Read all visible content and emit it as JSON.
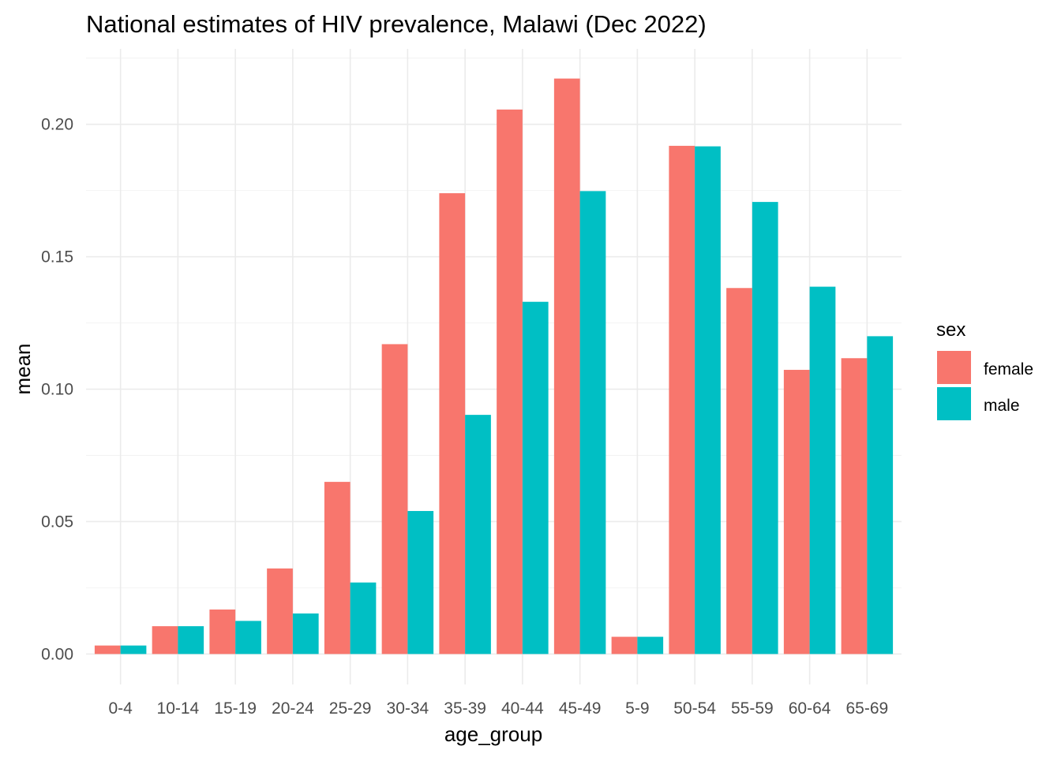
{
  "chart_data": {
    "type": "bar",
    "title": "National estimates of HIV prevalence, Malawi (Dec 2022)",
    "xlabel": "age_group",
    "ylabel": "mean",
    "categories": [
      "0-4",
      "10-14",
      "15-19",
      "20-24",
      "25-29",
      "30-34",
      "35-39",
      "40-44",
      "45-49",
      "5-9",
      "50-54",
      "55-59",
      "60-64",
      "65-69"
    ],
    "series": [
      {
        "name": "female",
        "color": "#F8766D",
        "values": [
          0.0032,
          0.0105,
          0.0168,
          0.0323,
          0.065,
          0.117,
          0.174,
          0.2056,
          0.2173,
          0.0065,
          0.1919,
          0.1382,
          0.1073,
          0.1117
        ]
      },
      {
        "name": "male",
        "color": "#00BFC4",
        "values": [
          0.0032,
          0.0105,
          0.0125,
          0.0153,
          0.027,
          0.054,
          0.0903,
          0.133,
          0.1748,
          0.0065,
          0.1917,
          0.1707,
          0.1387,
          0.12
        ]
      }
    ],
    "yticks": [
      0.0,
      0.05,
      0.1,
      0.15,
      0.2
    ],
    "ytick_labels": [
      "0.00",
      "0.05",
      "0.10",
      "0.15",
      "0.20"
    ],
    "ylim": [
      -0.0115,
      0.2285
    ],
    "grid": true,
    "legend": {
      "title": "sex",
      "position": "right"
    }
  }
}
